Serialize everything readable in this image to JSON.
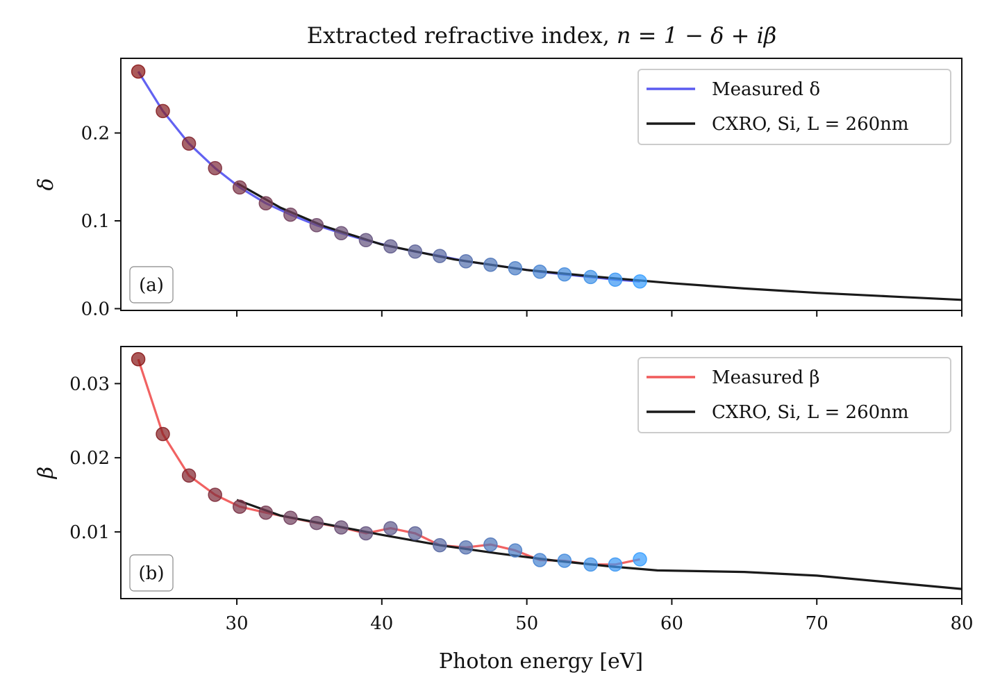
{
  "title": {
    "prefix": "Extracted refractive index,",
    "formula": "n = 1 − δ + iβ"
  },
  "xlabel": "Photon energy [eV]",
  "colors": {
    "measured_delta": "#5a5af0",
    "measured_beta": "#f05a5a",
    "cxro": "#1a1a1a",
    "marker_start": "#8b1a1a",
    "marker_end": "#3aa0ff"
  },
  "chart_data": [
    {
      "type": "line",
      "panel_label": "(a)",
      "ylabel": "δ",
      "xlim": [
        22,
        80
      ],
      "ylim": [
        -0.002,
        0.285
      ],
      "xticks": [
        30,
        40,
        50,
        60,
        70,
        80
      ],
      "yticks": [
        0.0,
        0.1,
        0.2
      ],
      "yticklabels": [
        "0.0",
        "0.1",
        "0.2"
      ],
      "legend_position": "upper right",
      "series": [
        {
          "name": "Measured δ",
          "kind": "measured",
          "x": [
            23.2,
            24.9,
            26.7,
            28.5,
            30.2,
            32.0,
            33.7,
            35.5,
            37.2,
            38.9,
            40.6,
            42.3,
            44.0,
            45.8,
            47.5,
            49.2,
            50.9,
            52.6,
            54.4,
            56.1,
            57.8
          ],
          "y": [
            0.27,
            0.225,
            0.188,
            0.16,
            0.138,
            0.12,
            0.107,
            0.095,
            0.086,
            0.078,
            0.071,
            0.065,
            0.06,
            0.054,
            0.05,
            0.046,
            0.042,
            0.039,
            0.036,
            0.033,
            0.031
          ]
        },
        {
          "name": "CXRO, Si, L = 260nm",
          "kind": "reference",
          "x": [
            30,
            33,
            36,
            40,
            45,
            50,
            55,
            60,
            65,
            70,
            75,
            80
          ],
          "y": [
            0.143,
            0.115,
            0.094,
            0.073,
            0.056,
            0.044,
            0.036,
            0.029,
            0.023,
            0.018,
            0.014,
            0.01
          ]
        }
      ]
    },
    {
      "type": "line",
      "panel_label": "(b)",
      "ylabel": "β",
      "xlim": [
        22,
        80
      ],
      "ylim": [
        0.001,
        0.035
      ],
      "xticks": [
        30,
        40,
        50,
        60,
        70,
        80
      ],
      "xticklabels": [
        "30",
        "40",
        "50",
        "60",
        "70",
        "80"
      ],
      "yticks": [
        0.01,
        0.02,
        0.03
      ],
      "yticklabels": [
        "0.01",
        "0.02",
        "0.03"
      ],
      "legend_position": "upper right",
      "series": [
        {
          "name": "Measured β",
          "kind": "measured",
          "x": [
            23.2,
            24.9,
            26.7,
            28.5,
            30.2,
            32.0,
            33.7,
            35.5,
            37.2,
            38.9,
            40.6,
            42.3,
            44.0,
            45.8,
            47.5,
            49.2,
            50.9,
            52.6,
            54.4,
            56.1,
            57.8
          ],
          "y": [
            0.0333,
            0.0232,
            0.0176,
            0.015,
            0.0134,
            0.0126,
            0.0119,
            0.0112,
            0.0106,
            0.0098,
            0.0105,
            0.0098,
            0.0082,
            0.0079,
            0.0083,
            0.0075,
            0.0062,
            0.0061,
            0.0056,
            0.0056,
            0.0063
          ]
        },
        {
          "name": "CXRO, Si, L = 260nm",
          "kind": "reference",
          "x": [
            30,
            33,
            36,
            40,
            44,
            48,
            52,
            56,
            59,
            65,
            70,
            75,
            80
          ],
          "y": [
            0.0143,
            0.0122,
            0.0111,
            0.0096,
            0.0082,
            0.0071,
            0.0061,
            0.0053,
            0.0048,
            0.0046,
            0.0041,
            0.0032,
            0.0023
          ]
        }
      ]
    }
  ]
}
